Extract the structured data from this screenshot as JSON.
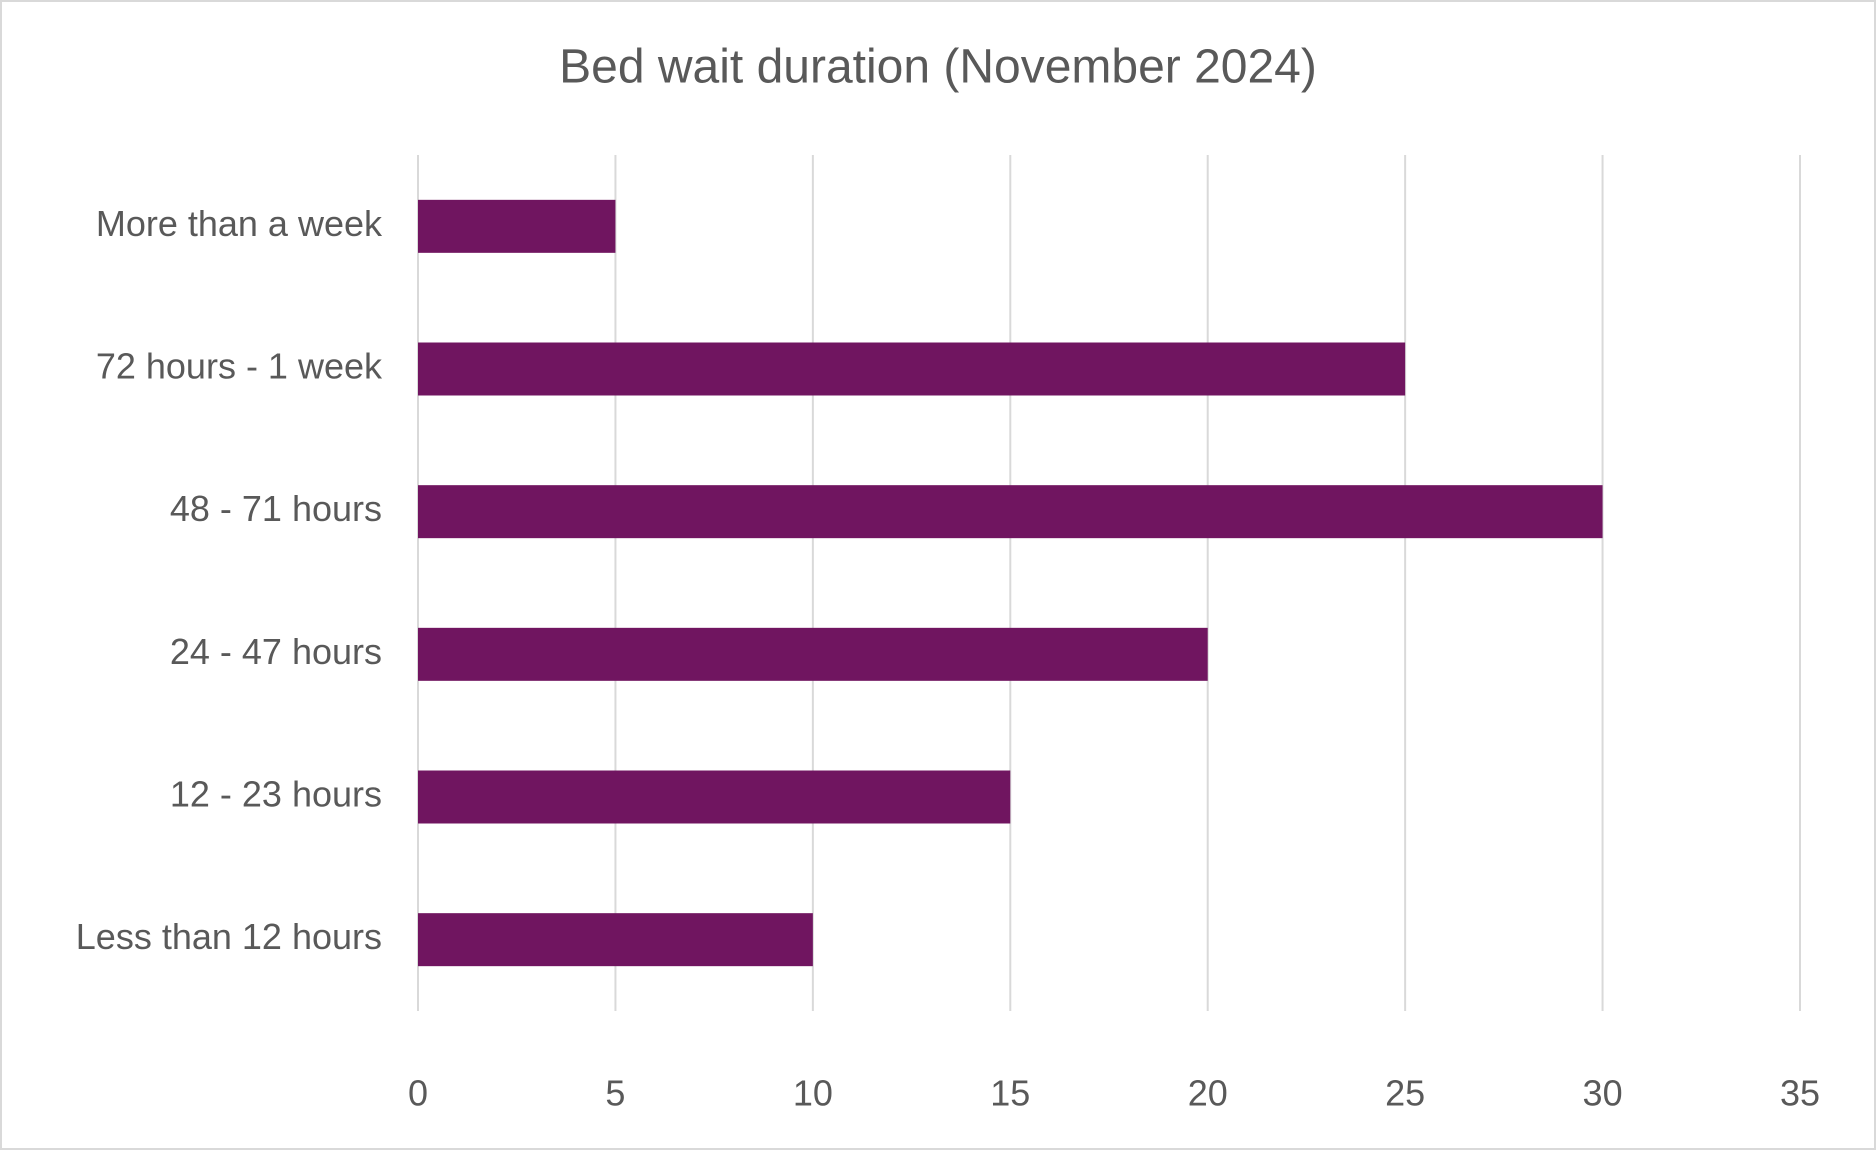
{
  "chart_data": {
    "type": "bar",
    "orientation": "horizontal",
    "title": "Bed wait duration (November 2024)",
    "categories": [
      "More than a week",
      "72 hours - 1 week",
      "48 - 71 hours",
      "24 - 47 hours",
      "12 - 23 hours",
      "Less than 12 hours"
    ],
    "values": [
      5,
      25,
      30,
      20,
      15,
      10
    ],
    "color": "#701560",
    "xlim": [
      0,
      35
    ],
    "xticks": [
      0,
      5,
      10,
      15,
      20,
      25,
      30,
      35
    ],
    "grid": true
  }
}
